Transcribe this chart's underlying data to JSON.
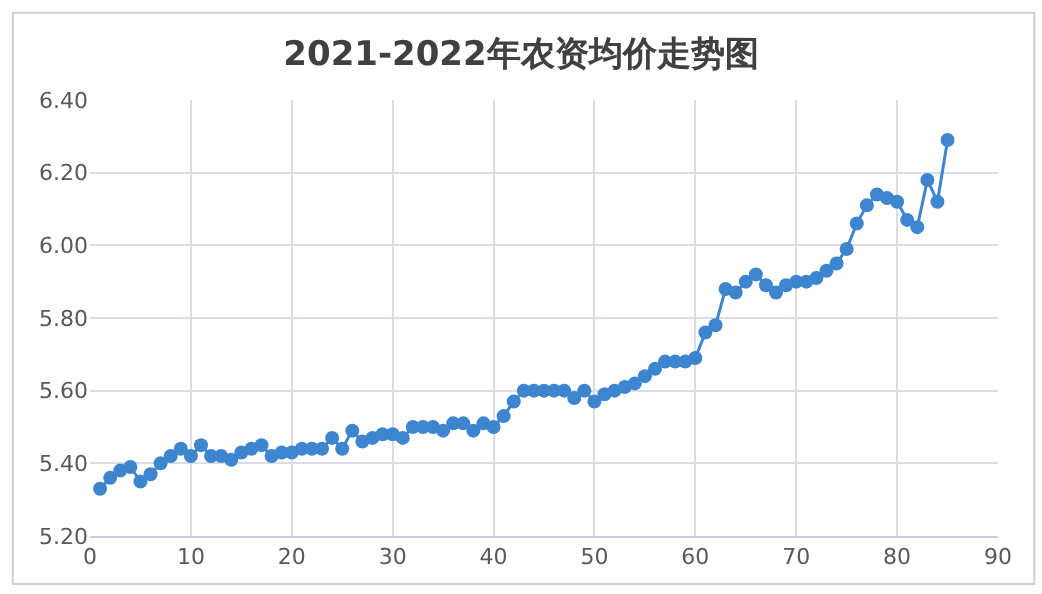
{
  "chart_data": {
    "type": "line",
    "title": "2021-2022年农资均价走势图",
    "x": [
      1,
      2,
      3,
      4,
      5,
      6,
      7,
      8,
      9,
      10,
      11,
      12,
      13,
      14,
      15,
      16,
      17,
      18,
      19,
      20,
      21,
      22,
      23,
      24,
      25,
      26,
      27,
      28,
      29,
      30,
      31,
      32,
      33,
      34,
      35,
      36,
      37,
      38,
      39,
      40,
      41,
      42,
      43,
      44,
      45,
      46,
      47,
      48,
      49,
      50,
      51,
      52,
      53,
      54,
      55,
      56,
      57,
      58,
      59,
      60,
      61,
      62,
      63,
      64,
      65,
      66,
      67,
      68,
      69,
      70,
      71,
      72,
      73,
      74,
      75,
      76,
      77,
      78,
      79,
      80,
      81,
      82,
      83,
      84,
      85
    ],
    "series": [
      {
        "color": "#3d85cf",
        "values": [
          5.33,
          5.36,
          5.38,
          5.39,
          5.35,
          5.37,
          5.4,
          5.42,
          5.44,
          5.42,
          5.45,
          5.42,
          5.42,
          5.41,
          5.43,
          5.44,
          5.45,
          5.42,
          5.43,
          5.43,
          5.44,
          5.44,
          5.44,
          5.47,
          5.44,
          5.49,
          5.46,
          5.47,
          5.48,
          5.48,
          5.47,
          5.5,
          5.5,
          5.5,
          5.49,
          5.51,
          5.51,
          5.49,
          5.51,
          5.5,
          5.53,
          5.57,
          5.6,
          5.6,
          5.6,
          5.6,
          5.6,
          5.58,
          5.6,
          5.57,
          5.59,
          5.6,
          5.61,
          5.62,
          5.64,
          5.66,
          5.68,
          5.68,
          5.68,
          5.69,
          5.76,
          5.78,
          5.88,
          5.87,
          5.9,
          5.92,
          5.89,
          5.87,
          5.89,
          5.9,
          5.9,
          5.91,
          5.93,
          5.95,
          5.99,
          6.06,
          6.11,
          6.14,
          6.13,
          6.12,
          6.07,
          6.05,
          6.18,
          6.12,
          6.29
        ]
      }
    ],
    "xlim": [
      0,
      90
    ],
    "xticks": [
      0,
      10,
      20,
      30,
      40,
      50,
      60,
      70,
      80,
      90
    ],
    "ylim": [
      5.2,
      6.4
    ],
    "yticks": [
      {
        "value": 5.2,
        "label": "5.20"
      },
      {
        "value": 5.4,
        "label": "5.40"
      },
      {
        "value": 5.6,
        "label": "5.60"
      },
      {
        "value": 5.8,
        "label": "5.80"
      },
      {
        "value": 6.0,
        "label": "6.00"
      },
      {
        "value": 6.2,
        "label": "6.20"
      },
      {
        "value": 6.4,
        "label": "6.40"
      }
    ],
    "grid": true,
    "marker": "circle",
    "line_style": "solid"
  }
}
